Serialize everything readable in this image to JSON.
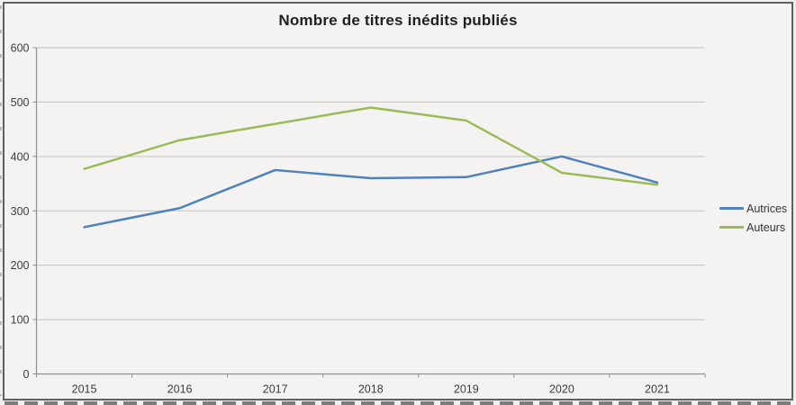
{
  "chart_data": {
    "type": "line",
    "title": "Nombre de titres inédits publiés",
    "categories": [
      "2015",
      "2016",
      "2017",
      "2018",
      "2019",
      "2020",
      "2021"
    ],
    "series": [
      {
        "name": "Autrices",
        "color": "#4F81BD",
        "values": [
          270,
          305,
          375,
          360,
          362,
          400,
          352
        ]
      },
      {
        "name": "Auteurs",
        "color": "#9BBB59",
        "values": [
          377,
          430,
          460,
          490,
          466,
          370,
          348
        ]
      }
    ],
    "ylim": [
      0,
      600
    ],
    "yticks": [
      0,
      100,
      200,
      300,
      400,
      500,
      600
    ],
    "grid": true,
    "legend_position": "right",
    "xlabel": "",
    "ylabel": ""
  },
  "style": {
    "gridline_color": "#c2c1c0",
    "axis_color": "#8f8f8f",
    "tick_label_color": "#3d3d3d",
    "title_color": "#212121",
    "line_width": 2.5
  }
}
